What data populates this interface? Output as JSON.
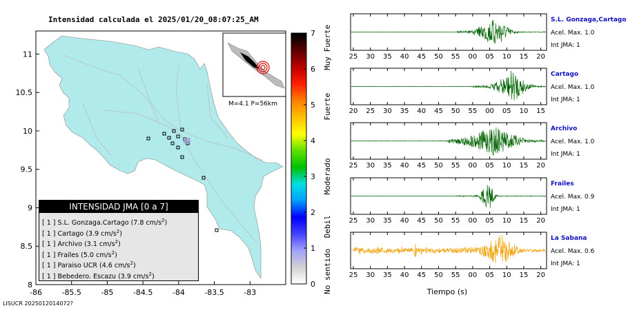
{
  "map": {
    "title": "Intensidad calculada el 2025/01/20_08:07:25_AM",
    "footer_id": "LISUCR 2025012014072?",
    "x_ticks": [
      "-86",
      "-85.5",
      "-85",
      "-84.5",
      "-84",
      "-83.5",
      "-83"
    ],
    "y_ticks": [
      "11",
      "10.5",
      "10",
      "9.5",
      "9",
      "8.5",
      "8"
    ],
    "inset_label": "M=4.1 P=56km",
    "colorbar": {
      "ticks": [
        "0",
        "1",
        "2",
        "3",
        "4",
        "5",
        "6",
        "7"
      ],
      "categories": [
        "No sentido",
        "Debil",
        "Moderado",
        "Fuerte",
        "Muy Fuerte"
      ]
    },
    "legend": {
      "title": "INTENSIDAD JMA [0 a 7]",
      "items": [
        {
          "jma": "[ 1 ]",
          "station": "S.L. Gonzaga.Cartago",
          "value": "(7.8 cm/s",
          "sup": "2",
          "close": ")"
        },
        {
          "jma": "[ 1 ]",
          "station": "Cartago",
          "value": "(3.9 cm/s",
          "sup": "2",
          "close": ")"
        },
        {
          "jma": "[ 1 ]",
          "station": "Archivo",
          "value": "(3.1 cm/s",
          "sup": "2",
          "close": ")"
        },
        {
          "jma": "[ 1 ]",
          "station": "Frailes",
          "value": "(5.0 cm/s",
          "sup": "2",
          "close": ")"
        },
        {
          "jma": "[ 1 ]",
          "station": "Paraiso UCR",
          "value": "(4.6 cm/s",
          "sup": "2",
          "close": ")"
        },
        {
          "jma": "[ 1 ]",
          "station": "Bebedero. Escazu",
          "value": "(3.9 cm/s",
          "sup": "2",
          "close": ")"
        }
      ]
    }
  },
  "traces": [
    {
      "name": "S.L. Gonzaga,Cartago",
      "acel": "Acel. Max. 1.0",
      "jma": "Int JMA: 1",
      "color": "#006400",
      "ticks": [
        "25",
        "30",
        "35",
        "40",
        "45",
        "50",
        "55",
        "00",
        "05",
        "10",
        "15",
        "20"
      ],
      "first_tick": 25
    },
    {
      "name": "Cartago",
      "acel": "Acel. Max. 1.0",
      "jma": "Int JMA: 1",
      "color": "#006400",
      "ticks": [
        "20",
        "25",
        "30",
        "35",
        "40",
        "45",
        "50",
        "55",
        "00",
        "05",
        "10",
        "15"
      ],
      "first_tick": 20
    },
    {
      "name": "Archivo",
      "acel": "Acel. Max. 1.0",
      "jma": "Int JMA: 1",
      "color": "#006400",
      "ticks": [
        "25",
        "30",
        "35",
        "40",
        "45",
        "50",
        "55",
        "00",
        "05",
        "10",
        "15",
        "20"
      ],
      "first_tick": 25
    },
    {
      "name": "Frailes",
      "acel": "Acel. Max. 0.9",
      "jma": "Int JMA: 1",
      "color": "#006400",
      "ticks": [
        "25",
        "30",
        "35",
        "40",
        "45",
        "50",
        "55",
        "00",
        "05",
        "10",
        "15",
        "20"
      ],
      "first_tick": 25
    },
    {
      "name": "La Sabana",
      "acel": "Acel. Max. 0.6",
      "jma": "Int JMA: 1",
      "color": "#f0a000",
      "ticks": [
        "25",
        "30",
        "35",
        "40",
        "45",
        "50",
        "55",
        "00",
        "05",
        "10",
        "15",
        "20"
      ],
      "first_tick": 25
    }
  ],
  "traces_xlabel": "Tiempo (s)",
  "colors": {
    "land": "#b0eaea",
    "legend_bg": "#e6e6e6",
    "station_name": "#1010c0",
    "epicenter": "#e00000"
  }
}
